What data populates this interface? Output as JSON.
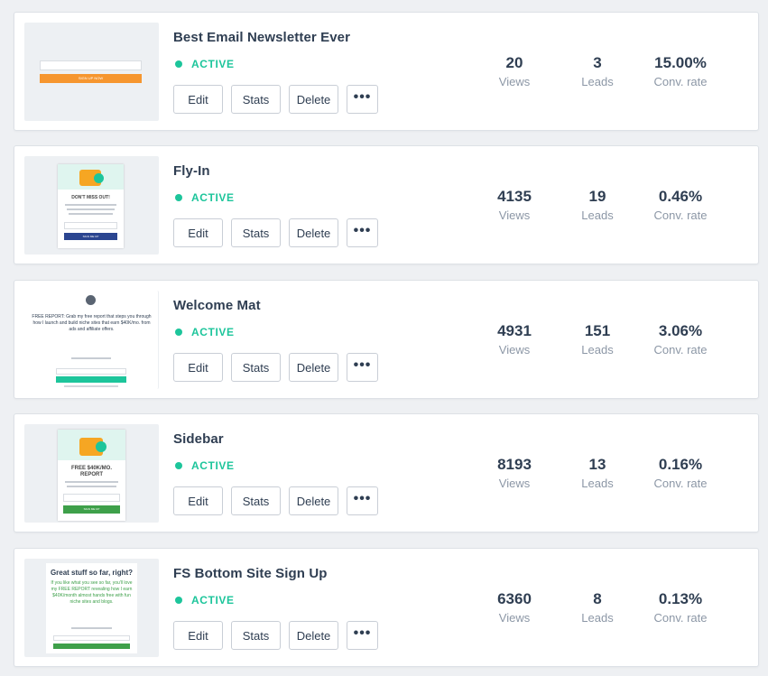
{
  "colors": {
    "accent": "#1dc59b",
    "text": "#2f3e52",
    "muted": "#8c97a6"
  },
  "labels": {
    "views": "Views",
    "leads": "Leads",
    "conv": "Conv. rate",
    "edit": "Edit",
    "stats": "Stats",
    "delete": "Delete",
    "more": "•••"
  },
  "forms": [
    {
      "title": "Best Email Newsletter Ever",
      "status": "ACTIVE",
      "views": "20",
      "leads": "3",
      "conv": "15.00%"
    },
    {
      "title": "Fly-In",
      "status": "ACTIVE",
      "views": "4135",
      "leads": "19",
      "conv": "0.46%"
    },
    {
      "title": "Welcome Mat",
      "status": "ACTIVE",
      "views": "4931",
      "leads": "151",
      "conv": "3.06%"
    },
    {
      "title": "Sidebar",
      "status": "ACTIVE",
      "views": "8193",
      "leads": "13",
      "conv": "0.16%"
    },
    {
      "title": "FS Bottom Site Sign Up",
      "status": "ACTIVE",
      "views": "6360",
      "leads": "8",
      "conv": "0.13%"
    }
  ],
  "previews": {
    "p1": {
      "button": "SIGN UP NOW"
    },
    "p2": {
      "heading": "DON'T MISS OUT!",
      "button": "SIGN ME UP"
    },
    "p3": {
      "heading": "FREE REPORT: Grab my free report that steps you through how I launch and build niche sites that earn $40K/mo. from ads and affiliate offers."
    },
    "p4": {
      "heading": "FREE $40K/MO. REPORT",
      "button": "SIGN ME UP"
    },
    "p5": {
      "heading": "Great stuff so far, right?",
      "body": "If you like what you see so far, you'll love my FREE REPORT revealing how I earn $40K/month almost hands free with fun niche sites and blogs."
    }
  }
}
